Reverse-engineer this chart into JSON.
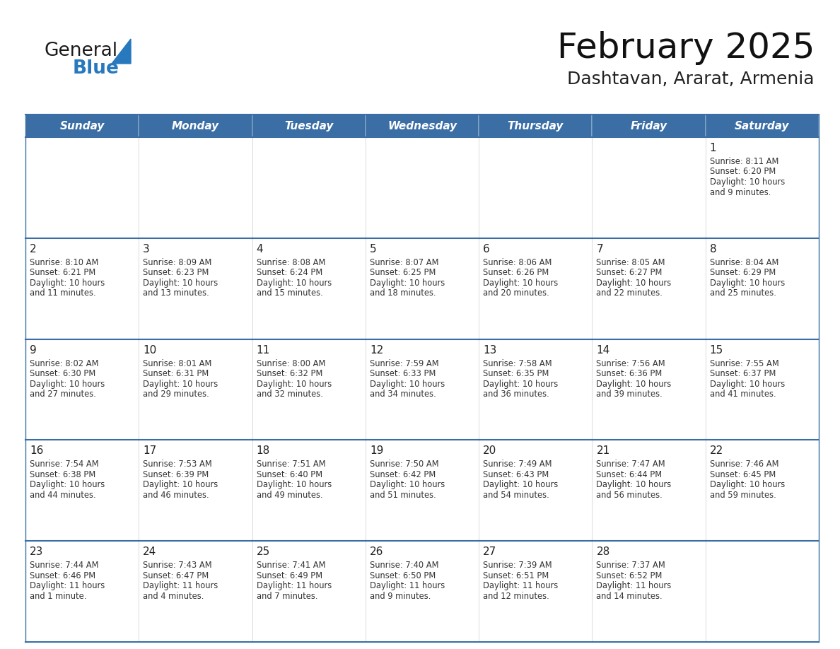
{
  "title": "February 2025",
  "subtitle": "Dashtavan, Ararat, Armenia",
  "days_of_week": [
    "Sunday",
    "Monday",
    "Tuesday",
    "Wednesday",
    "Thursday",
    "Friday",
    "Saturday"
  ],
  "header_bg": "#3A6EA5",
  "header_text": "#FFFFFF",
  "cell_bg": "#FFFFFF",
  "border_color": "#3A6EA5",
  "border_color_light": "#AAAACC",
  "text_color": "#333333",
  "day_number_color": "#222222",
  "calendar_data": [
    [
      null,
      null,
      null,
      null,
      null,
      null,
      {
        "day": 1,
        "sunrise": "8:11 AM",
        "sunset": "6:20 PM",
        "daylight": "10 hours and 9 minutes."
      }
    ],
    [
      {
        "day": 2,
        "sunrise": "8:10 AM",
        "sunset": "6:21 PM",
        "daylight": "10 hours and 11 minutes."
      },
      {
        "day": 3,
        "sunrise": "8:09 AM",
        "sunset": "6:23 PM",
        "daylight": "10 hours and 13 minutes."
      },
      {
        "day": 4,
        "sunrise": "8:08 AM",
        "sunset": "6:24 PM",
        "daylight": "10 hours and 15 minutes."
      },
      {
        "day": 5,
        "sunrise": "8:07 AM",
        "sunset": "6:25 PM",
        "daylight": "10 hours and 18 minutes."
      },
      {
        "day": 6,
        "sunrise": "8:06 AM",
        "sunset": "6:26 PM",
        "daylight": "10 hours and 20 minutes."
      },
      {
        "day": 7,
        "sunrise": "8:05 AM",
        "sunset": "6:27 PM",
        "daylight": "10 hours and 22 minutes."
      },
      {
        "day": 8,
        "sunrise": "8:04 AM",
        "sunset": "6:29 PM",
        "daylight": "10 hours and 25 minutes."
      }
    ],
    [
      {
        "day": 9,
        "sunrise": "8:02 AM",
        "sunset": "6:30 PM",
        "daylight": "10 hours and 27 minutes."
      },
      {
        "day": 10,
        "sunrise": "8:01 AM",
        "sunset": "6:31 PM",
        "daylight": "10 hours and 29 minutes."
      },
      {
        "day": 11,
        "sunrise": "8:00 AM",
        "sunset": "6:32 PM",
        "daylight": "10 hours and 32 minutes."
      },
      {
        "day": 12,
        "sunrise": "7:59 AM",
        "sunset": "6:33 PM",
        "daylight": "10 hours and 34 minutes."
      },
      {
        "day": 13,
        "sunrise": "7:58 AM",
        "sunset": "6:35 PM",
        "daylight": "10 hours and 36 minutes."
      },
      {
        "day": 14,
        "sunrise": "7:56 AM",
        "sunset": "6:36 PM",
        "daylight": "10 hours and 39 minutes."
      },
      {
        "day": 15,
        "sunrise": "7:55 AM",
        "sunset": "6:37 PM",
        "daylight": "10 hours and 41 minutes."
      }
    ],
    [
      {
        "day": 16,
        "sunrise": "7:54 AM",
        "sunset": "6:38 PM",
        "daylight": "10 hours and 44 minutes."
      },
      {
        "day": 17,
        "sunrise": "7:53 AM",
        "sunset": "6:39 PM",
        "daylight": "10 hours and 46 minutes."
      },
      {
        "day": 18,
        "sunrise": "7:51 AM",
        "sunset": "6:40 PM",
        "daylight": "10 hours and 49 minutes."
      },
      {
        "day": 19,
        "sunrise": "7:50 AM",
        "sunset": "6:42 PM",
        "daylight": "10 hours and 51 minutes."
      },
      {
        "day": 20,
        "sunrise": "7:49 AM",
        "sunset": "6:43 PM",
        "daylight": "10 hours and 54 minutes."
      },
      {
        "day": 21,
        "sunrise": "7:47 AM",
        "sunset": "6:44 PM",
        "daylight": "10 hours and 56 minutes."
      },
      {
        "day": 22,
        "sunrise": "7:46 AM",
        "sunset": "6:45 PM",
        "daylight": "10 hours and 59 minutes."
      }
    ],
    [
      {
        "day": 23,
        "sunrise": "7:44 AM",
        "sunset": "6:46 PM",
        "daylight": "11 hours and 1 minute."
      },
      {
        "day": 24,
        "sunrise": "7:43 AM",
        "sunset": "6:47 PM",
        "daylight": "11 hours and 4 minutes."
      },
      {
        "day": 25,
        "sunrise": "7:41 AM",
        "sunset": "6:49 PM",
        "daylight": "11 hours and 7 minutes."
      },
      {
        "day": 26,
        "sunrise": "7:40 AM",
        "sunset": "6:50 PM",
        "daylight": "11 hours and 9 minutes."
      },
      {
        "day": 27,
        "sunrise": "7:39 AM",
        "sunset": "6:51 PM",
        "daylight": "11 hours and 12 minutes."
      },
      {
        "day": 28,
        "sunrise": "7:37 AM",
        "sunset": "6:52 PM",
        "daylight": "11 hours and 14 minutes."
      },
      null
    ]
  ],
  "logo_general_color": "#1a1a1a",
  "logo_blue_color": "#2878BE",
  "logo_triangle_color": "#2878BE"
}
